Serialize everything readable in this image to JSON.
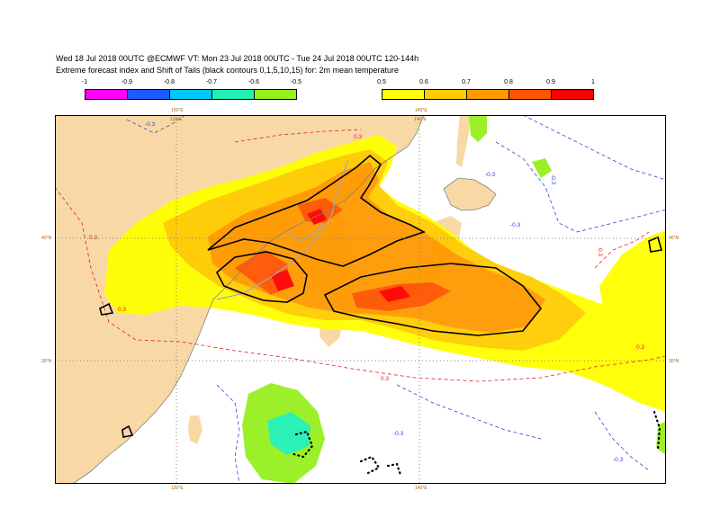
{
  "header": {
    "line1": "Wed 18 Jul 2018 00UTC @ECMWF VT: Mon 23 Jul 2018 00UTC - Tue 24 Jul 2018 00UTC  120-144h",
    "line2": "Extreme forecast index and Shift of Tails (black contours 0,1,5,10,15) for: 2m mean temperature"
  },
  "legend_negative": {
    "ticks": [
      "-1",
      "-0.9",
      "-0.8",
      "-0.7",
      "-0.6",
      "-0.5"
    ],
    "colors": [
      "#ff00ff",
      "#1e5aff",
      "#00c8ff",
      "#20f0b4",
      "#96f01e"
    ]
  },
  "legend_positive": {
    "ticks": [
      "0.5",
      "0.6",
      "0.7",
      "0.8",
      "0.9",
      "1"
    ],
    "colors": [
      "#ffff00",
      "#ffcc00",
      "#ff9900",
      "#ff5500",
      "#ff0000"
    ]
  },
  "map": {
    "lon_labels": [
      "120°E",
      "140°E"
    ],
    "lat_labels": [
      "40°N",
      "30°N"
    ],
    "contour_labels": [
      "0.3",
      "-0.3",
      "-0.3",
      "-0.3",
      "-0.3",
      "0.3",
      "-0.3",
      "0.3",
      "0.3",
      "0.3",
      "-0.3",
      "0.3"
    ],
    "colors": {
      "land": "#f8d9a6",
      "sea": "#ffffff",
      "border": "#a9a9a9",
      "grid": "#808080",
      "positive_contour": "#dd2222",
      "negative_contour": "#3344cc",
      "sot_contour": "#000000",
      "axis_label": "#a0621e"
    }
  }
}
